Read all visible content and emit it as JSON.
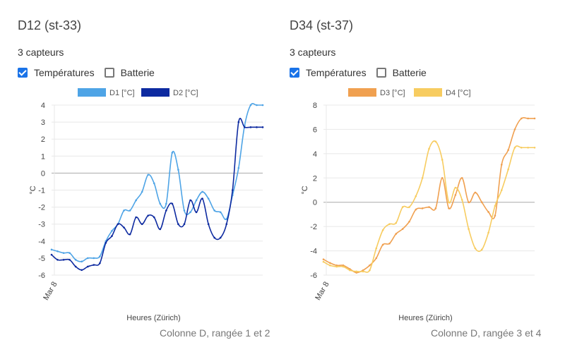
{
  "panels": [
    {
      "title": "D12 (st-33)",
      "subtitle": "3 capteurs",
      "checkboxes": [
        {
          "label": "Températures",
          "checked": true
        },
        {
          "label": "Batterie",
          "checked": false
        }
      ],
      "footer": "Colonne D, rangée 1 et 2"
    },
    {
      "title": "D34 (st-37)",
      "subtitle": "3 capteurs",
      "checkboxes": [
        {
          "label": "Températures",
          "checked": true
        },
        {
          "label": "Batterie",
          "checked": false
        }
      ],
      "footer": "Colonne D, rangée 3 et 4"
    }
  ],
  "chart_data": [
    {
      "type": "line",
      "xlabel": "Heures (Zürich)",
      "ylabel": "°C",
      "x_tick_labels": [
        "Mar 8"
      ],
      "ylim": [
        -6,
        4
      ],
      "yticks": [
        -6,
        -5,
        -4,
        -3,
        -2,
        -1,
        0,
        1,
        2,
        3,
        4
      ],
      "grid": true,
      "legend": "top",
      "series": [
        {
          "name": "D1 [°C]",
          "color": "#4ea4e6",
          "x": [
            0,
            2,
            4,
            6,
            8,
            10,
            12,
            14,
            16,
            18,
            20,
            22,
            24,
            26,
            28,
            30,
            32,
            34,
            36,
            38,
            40,
            42,
            44,
            46,
            48,
            50,
            52,
            54,
            56,
            58,
            60,
            62,
            64,
            66,
            68,
            70
          ],
          "y": [
            -4.5,
            -4.6,
            -4.7,
            -4.7,
            -5.1,
            -5.2,
            -5.0,
            -5.0,
            -4.9,
            -4.0,
            -3.4,
            -3.0,
            -2.2,
            -2.2,
            -1.6,
            -1.1,
            -0.1,
            -0.6,
            -1.8,
            -1.8,
            1.2,
            0.2,
            -2.2,
            -2.3,
            -1.6,
            -1.1,
            -1.5,
            -2.2,
            -2.3,
            -2.7,
            -1.3,
            0.3,
            2.8,
            4.0,
            4.0,
            4.0
          ]
        },
        {
          "name": "D2 [°C]",
          "color": "#0d2aa0",
          "x": [
            0,
            2,
            4,
            6,
            8,
            10,
            12,
            14,
            16,
            18,
            20,
            22,
            24,
            26,
            28,
            30,
            32,
            34,
            36,
            38,
            40,
            42,
            44,
            46,
            48,
            50,
            52,
            54,
            56,
            58,
            60,
            62,
            64,
            66,
            68,
            70
          ],
          "y": [
            -4.8,
            -5.1,
            -5.1,
            -5.1,
            -5.5,
            -5.7,
            -5.5,
            -5.4,
            -5.3,
            -4.1,
            -3.7,
            -3.0,
            -3.2,
            -3.6,
            -2.6,
            -3.0,
            -2.5,
            -2.6,
            -3.3,
            -2.2,
            -1.8,
            -3.0,
            -3.0,
            -1.6,
            -2.3,
            -1.5,
            -3.0,
            -3.8,
            -3.8,
            -3.0,
            -1.0,
            3.0,
            2.7,
            2.7,
            2.7,
            2.7
          ]
        }
      ]
    },
    {
      "type": "line",
      "xlabel": "Heures (Zürich)",
      "ylabel": "°C",
      "x_tick_labels": [
        "Mar 8"
      ],
      "ylim": [
        -6,
        8
      ],
      "yticks": [
        -6,
        -4,
        -2,
        0,
        2,
        4,
        6,
        8
      ],
      "grid": true,
      "legend": "top",
      "series": [
        {
          "name": "D3 [°C]",
          "color": "#f0a050",
          "x": [
            0,
            2,
            4,
            6,
            8,
            10,
            12,
            14,
            16,
            18,
            20,
            22,
            24,
            26,
            28,
            30,
            32,
            34,
            36,
            38,
            40,
            42,
            44,
            46,
            48,
            50,
            52,
            54,
            56,
            58,
            60,
            62,
            64
          ],
          "y": [
            -4.7,
            -5.0,
            -5.2,
            -5.2,
            -5.5,
            -5.8,
            -5.6,
            -5.2,
            -4.6,
            -3.5,
            -3.4,
            -2.6,
            -2.2,
            -1.6,
            -0.6,
            -0.5,
            -0.4,
            -0.5,
            2.0,
            -0.5,
            0.6,
            2.0,
            0.0,
            0.8,
            0.0,
            -0.8,
            -1.1,
            3.1,
            4.3,
            6.0,
            6.9,
            6.9,
            6.9
          ]
        },
        {
          "name": "D4 [°C]",
          "color": "#f7cc60",
          "x": [
            0,
            2,
            4,
            6,
            8,
            10,
            12,
            14,
            16,
            18,
            20,
            22,
            24,
            26,
            28,
            30,
            32,
            34,
            36,
            38,
            40,
            42,
            44,
            46,
            48,
            50,
            52,
            54,
            56,
            58,
            60,
            62,
            64
          ],
          "y": [
            -4.9,
            -5.2,
            -5.3,
            -5.3,
            -5.6,
            -5.7,
            -5.7,
            -5.6,
            -3.8,
            -2.3,
            -1.8,
            -1.7,
            -0.4,
            -0.4,
            0.5,
            2.0,
            4.4,
            5.0,
            3.5,
            0.0,
            1.2,
            0.2,
            -2.2,
            -3.8,
            -3.9,
            -2.5,
            -0.3,
            1.0,
            2.7,
            4.5,
            4.5,
            4.5,
            4.5
          ]
        }
      ]
    }
  ]
}
